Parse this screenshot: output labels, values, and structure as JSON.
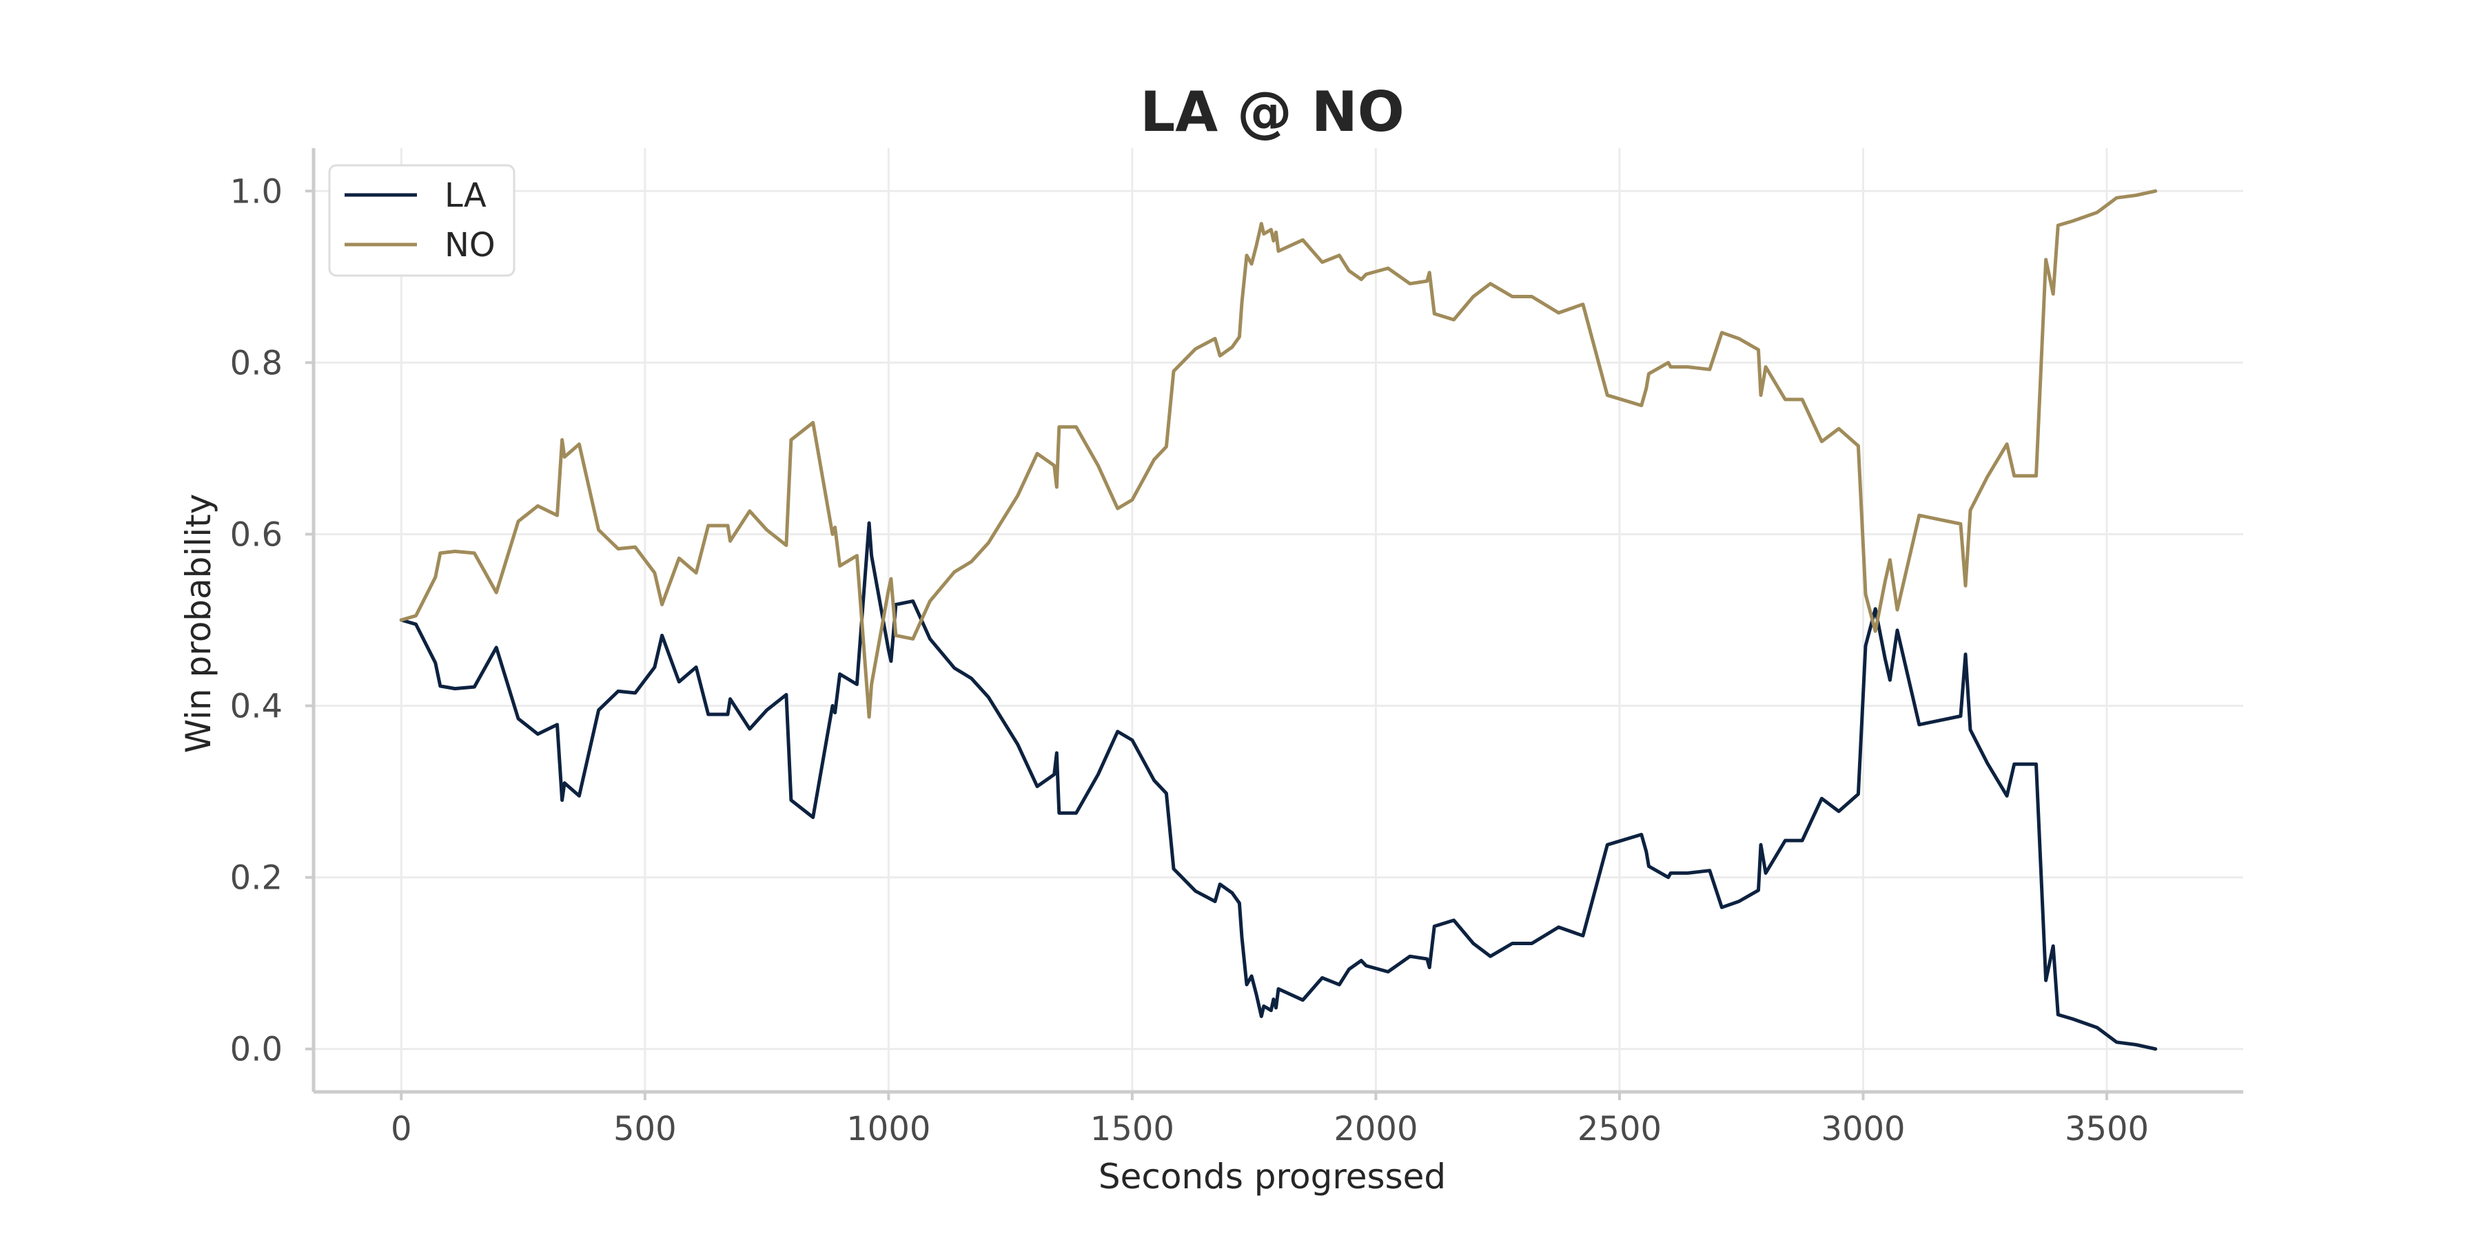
{
  "chart_data": {
    "type": "line",
    "title": "LA @ NO",
    "xlabel": "Seconds progressed",
    "ylabel": "Win probability",
    "xlim": [
      -180,
      3780
    ],
    "ylim": [
      -0.05,
      1.05
    ],
    "xticks": [
      0,
      500,
      1000,
      1500,
      2000,
      2500,
      3000,
      3500
    ],
    "yticks": [
      0.0,
      0.2,
      0.4,
      0.6,
      0.8,
      1.0
    ],
    "grid": true,
    "legend_position": "top-left",
    "series": [
      {
        "name": "LA",
        "color": "#0d2240",
        "points": [
          [
            0,
            0.5
          ],
          [
            30,
            0.495
          ],
          [
            70,
            0.45
          ],
          [
            80,
            0.423
          ],
          [
            110,
            0.42
          ],
          [
            150,
            0.422
          ],
          [
            195,
            0.468
          ],
          [
            240,
            0.385
          ],
          [
            280,
            0.367
          ],
          [
            320,
            0.378
          ],
          [
            330,
            0.29
          ],
          [
            335,
            0.31
          ],
          [
            365,
            0.295
          ],
          [
            405,
            0.395
          ],
          [
            445,
            0.417
          ],
          [
            480,
            0.415
          ],
          [
            520,
            0.445
          ],
          [
            535,
            0.482
          ],
          [
            570,
            0.428
          ],
          [
            605,
            0.445
          ],
          [
            630,
            0.39
          ],
          [
            670,
            0.39
          ],
          [
            675,
            0.408
          ],
          [
            715,
            0.373
          ],
          [
            750,
            0.395
          ],
          [
            790,
            0.413
          ],
          [
            800,
            0.29
          ],
          [
            845,
            0.27
          ],
          [
            885,
            0.4
          ],
          [
            890,
            0.392
          ],
          [
            900,
            0.437
          ],
          [
            935,
            0.425
          ],
          [
            960,
            0.613
          ],
          [
            965,
            0.575
          ],
          [
            1000,
            0.465
          ],
          [
            1005,
            0.452
          ],
          [
            1015,
            0.518
          ],
          [
            1050,
            0.522
          ],
          [
            1085,
            0.478
          ],
          [
            1135,
            0.444
          ],
          [
            1170,
            0.432
          ],
          [
            1205,
            0.41
          ],
          [
            1265,
            0.355
          ],
          [
            1305,
            0.306
          ],
          [
            1340,
            0.32
          ],
          [
            1345,
            0.345
          ],
          [
            1350,
            0.275
          ],
          [
            1385,
            0.275
          ],
          [
            1430,
            0.32
          ],
          [
            1470,
            0.37
          ],
          [
            1500,
            0.36
          ],
          [
            1545,
            0.313
          ],
          [
            1570,
            0.298
          ],
          [
            1585,
            0.21
          ],
          [
            1630,
            0.184
          ],
          [
            1670,
            0.172
          ],
          [
            1680,
            0.192
          ],
          [
            1705,
            0.182
          ],
          [
            1720,
            0.17
          ],
          [
            1725,
            0.13
          ],
          [
            1735,
            0.075
          ],
          [
            1745,
            0.085
          ],
          [
            1755,
            0.063
          ],
          [
            1765,
            0.038
          ],
          [
            1770,
            0.05
          ],
          [
            1785,
            0.045
          ],
          [
            1790,
            0.058
          ],
          [
            1795,
            0.048
          ],
          [
            1800,
            0.07
          ],
          [
            1850,
            0.057
          ],
          [
            1890,
            0.083
          ],
          [
            1925,
            0.075
          ],
          [
            1945,
            0.093
          ],
          [
            1970,
            0.103
          ],
          [
            1980,
            0.097
          ],
          [
            2025,
            0.09
          ],
          [
            2070,
            0.108
          ],
          [
            2105,
            0.105
          ],
          [
            2110,
            0.095
          ],
          [
            2120,
            0.143
          ],
          [
            2160,
            0.15
          ],
          [
            2200,
            0.123
          ],
          [
            2235,
            0.108
          ],
          [
            2280,
            0.123
          ],
          [
            2320,
            0.123
          ],
          [
            2375,
            0.142
          ],
          [
            2425,
            0.132
          ],
          [
            2475,
            0.238
          ],
          [
            2545,
            0.25
          ],
          [
            2555,
            0.23
          ],
          [
            2560,
            0.213
          ],
          [
            2600,
            0.2
          ],
          [
            2605,
            0.205
          ],
          [
            2640,
            0.205
          ],
          [
            2685,
            0.208
          ],
          [
            2710,
            0.165
          ],
          [
            2745,
            0.172
          ],
          [
            2785,
            0.185
          ],
          [
            2790,
            0.238
          ],
          [
            2800,
            0.205
          ],
          [
            2840,
            0.243
          ],
          [
            2875,
            0.243
          ],
          [
            2915,
            0.292
          ],
          [
            2950,
            0.277
          ],
          [
            2990,
            0.297
          ],
          [
            3005,
            0.47
          ],
          [
            3025,
            0.513
          ],
          [
            3045,
            0.455
          ],
          [
            3055,
            0.43
          ],
          [
            3070,
            0.488
          ],
          [
            3115,
            0.378
          ],
          [
            3200,
            0.388
          ],
          [
            3210,
            0.46
          ],
          [
            3220,
            0.372
          ],
          [
            3255,
            0.333
          ],
          [
            3295,
            0.295
          ],
          [
            3310,
            0.332
          ],
          [
            3355,
            0.332
          ],
          [
            3375,
            0.08
          ],
          [
            3390,
            0.12
          ],
          [
            3400,
            0.04
          ],
          [
            3430,
            0.035
          ],
          [
            3480,
            0.025
          ],
          [
            3520,
            0.008
          ],
          [
            3560,
            0.005
          ],
          [
            3600,
            0.0
          ]
        ]
      },
      {
        "name": "NO",
        "color": "#a08b5a",
        "points": [
          [
            0,
            0.5
          ],
          [
            30,
            0.505
          ],
          [
            70,
            0.55
          ],
          [
            80,
            0.578
          ],
          [
            110,
            0.58
          ],
          [
            150,
            0.578
          ],
          [
            195,
            0.532
          ],
          [
            240,
            0.615
          ],
          [
            280,
            0.633
          ],
          [
            320,
            0.622
          ],
          [
            330,
            0.71
          ],
          [
            335,
            0.69
          ],
          [
            365,
            0.705
          ],
          [
            405,
            0.605
          ],
          [
            445,
            0.583
          ],
          [
            480,
            0.585
          ],
          [
            520,
            0.555
          ],
          [
            535,
            0.518
          ],
          [
            570,
            0.572
          ],
          [
            605,
            0.555
          ],
          [
            630,
            0.61
          ],
          [
            670,
            0.61
          ],
          [
            675,
            0.592
          ],
          [
            715,
            0.627
          ],
          [
            750,
            0.605
          ],
          [
            790,
            0.587
          ],
          [
            800,
            0.71
          ],
          [
            845,
            0.73
          ],
          [
            885,
            0.6
          ],
          [
            890,
            0.608
          ],
          [
            900,
            0.563
          ],
          [
            935,
            0.575
          ],
          [
            960,
            0.387
          ],
          [
            965,
            0.425
          ],
          [
            1000,
            0.535
          ],
          [
            1005,
            0.548
          ],
          [
            1015,
            0.482
          ],
          [
            1050,
            0.478
          ],
          [
            1085,
            0.522
          ],
          [
            1135,
            0.556
          ],
          [
            1170,
            0.568
          ],
          [
            1205,
            0.59
          ],
          [
            1265,
            0.645
          ],
          [
            1305,
            0.694
          ],
          [
            1340,
            0.68
          ],
          [
            1345,
            0.655
          ],
          [
            1350,
            0.725
          ],
          [
            1385,
            0.725
          ],
          [
            1430,
            0.68
          ],
          [
            1470,
            0.63
          ],
          [
            1500,
            0.64
          ],
          [
            1545,
            0.687
          ],
          [
            1570,
            0.702
          ],
          [
            1585,
            0.79
          ],
          [
            1630,
            0.816
          ],
          [
            1670,
            0.828
          ],
          [
            1680,
            0.808
          ],
          [
            1705,
            0.818
          ],
          [
            1720,
            0.83
          ],
          [
            1725,
            0.87
          ],
          [
            1735,
            0.925
          ],
          [
            1745,
            0.915
          ],
          [
            1755,
            0.937
          ],
          [
            1765,
            0.962
          ],
          [
            1770,
            0.95
          ],
          [
            1785,
            0.955
          ],
          [
            1790,
            0.942
          ],
          [
            1795,
            0.952
          ],
          [
            1800,
            0.93
          ],
          [
            1850,
            0.943
          ],
          [
            1890,
            0.917
          ],
          [
            1925,
            0.925
          ],
          [
            1945,
            0.907
          ],
          [
            1970,
            0.897
          ],
          [
            1980,
            0.903
          ],
          [
            2025,
            0.91
          ],
          [
            2070,
            0.892
          ],
          [
            2105,
            0.895
          ],
          [
            2110,
            0.905
          ],
          [
            2120,
            0.857
          ],
          [
            2160,
            0.85
          ],
          [
            2200,
            0.877
          ],
          [
            2235,
            0.892
          ],
          [
            2280,
            0.877
          ],
          [
            2320,
            0.877
          ],
          [
            2375,
            0.858
          ],
          [
            2425,
            0.868
          ],
          [
            2475,
            0.762
          ],
          [
            2545,
            0.75
          ],
          [
            2555,
            0.77
          ],
          [
            2560,
            0.787
          ],
          [
            2600,
            0.8
          ],
          [
            2605,
            0.795
          ],
          [
            2640,
            0.795
          ],
          [
            2685,
            0.792
          ],
          [
            2710,
            0.835
          ],
          [
            2745,
            0.828
          ],
          [
            2785,
            0.815
          ],
          [
            2790,
            0.762
          ],
          [
            2800,
            0.795
          ],
          [
            2840,
            0.757
          ],
          [
            2875,
            0.757
          ],
          [
            2915,
            0.708
          ],
          [
            2950,
            0.723
          ],
          [
            2990,
            0.703
          ],
          [
            3005,
            0.53
          ],
          [
            3025,
            0.487
          ],
          [
            3045,
            0.545
          ],
          [
            3055,
            0.57
          ],
          [
            3070,
            0.512
          ],
          [
            3115,
            0.622
          ],
          [
            3200,
            0.612
          ],
          [
            3210,
            0.54
          ],
          [
            3220,
            0.628
          ],
          [
            3255,
            0.667
          ],
          [
            3295,
            0.705
          ],
          [
            3310,
            0.668
          ],
          [
            3355,
            0.668
          ],
          [
            3375,
            0.92
          ],
          [
            3390,
            0.88
          ],
          [
            3400,
            0.96
          ],
          [
            3430,
            0.965
          ],
          [
            3480,
            0.975
          ],
          [
            3520,
            0.992
          ],
          [
            3560,
            0.995
          ],
          [
            3600,
            1.0
          ]
        ]
      }
    ]
  }
}
